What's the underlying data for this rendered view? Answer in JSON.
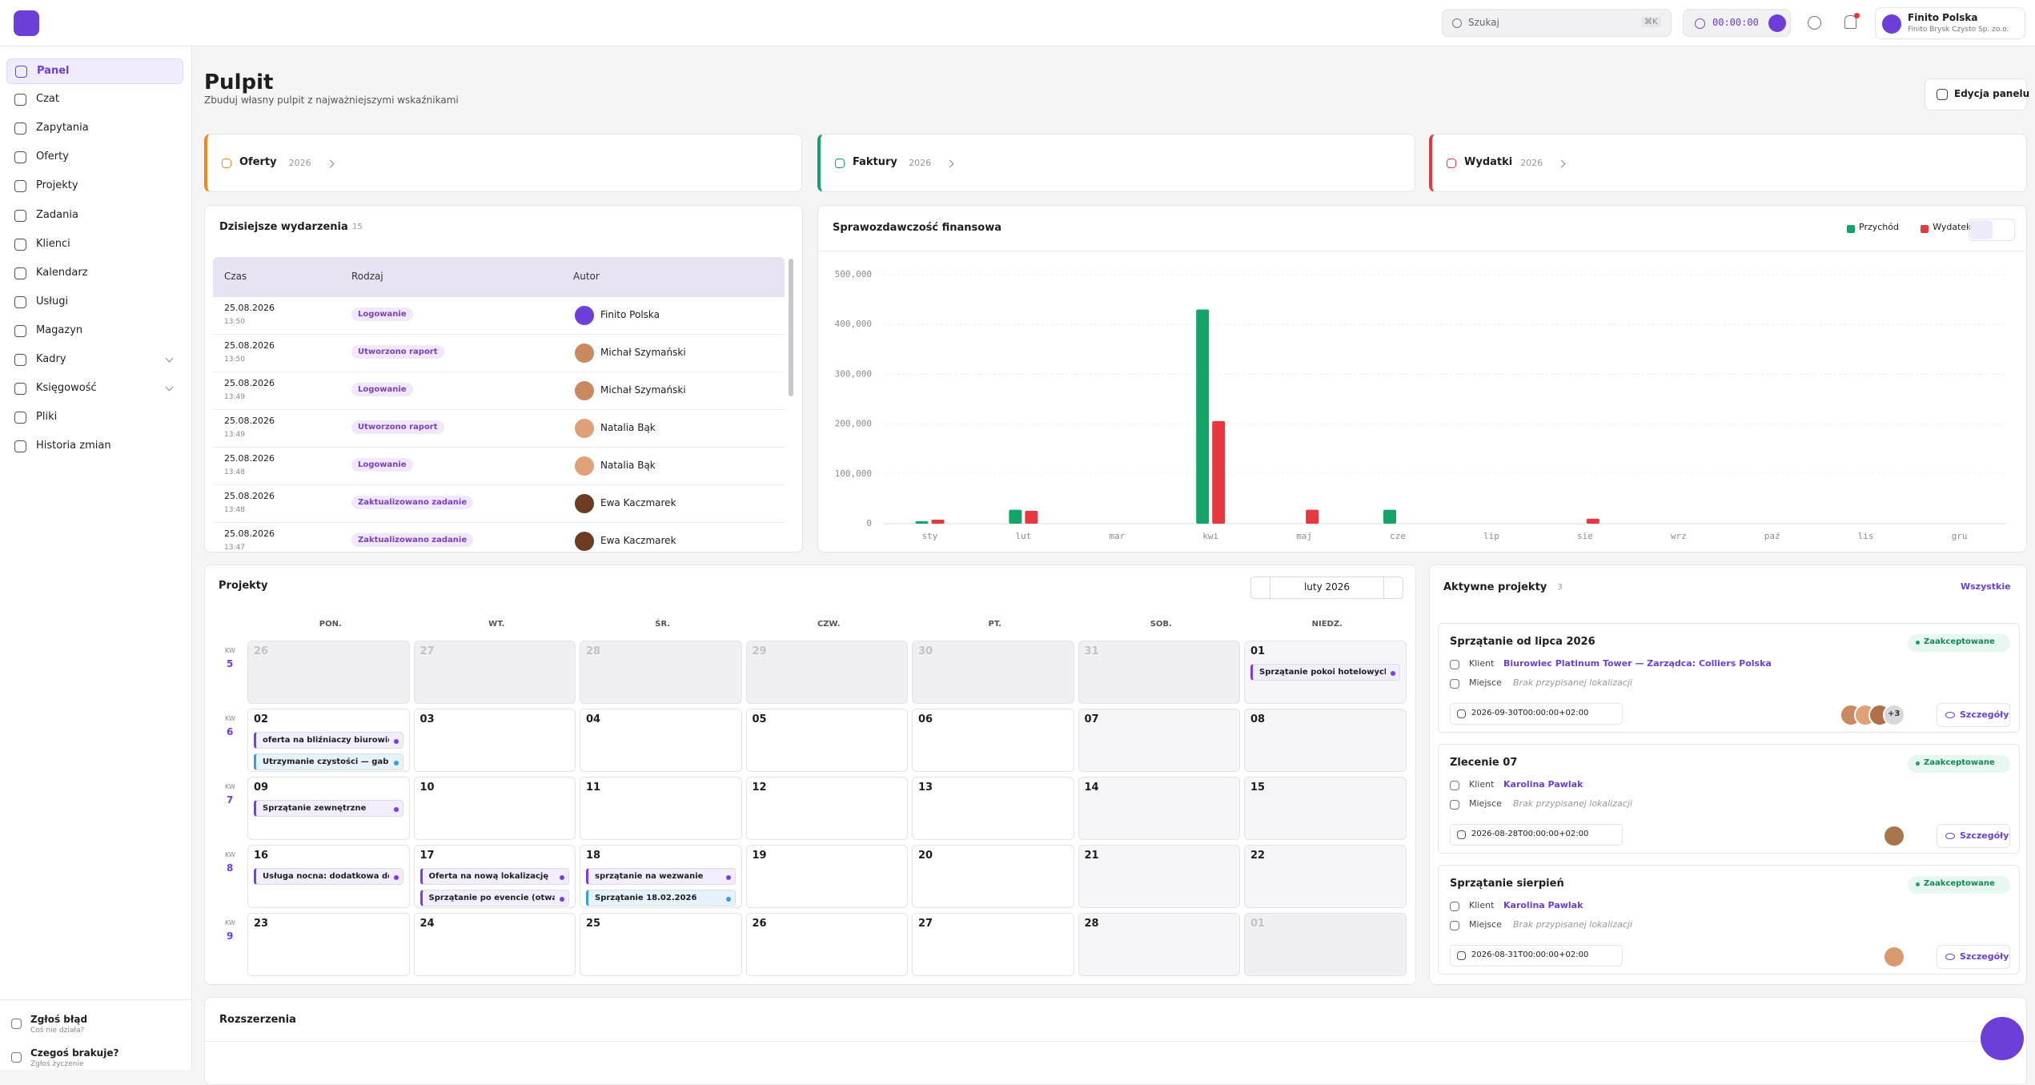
{
  "header": {
    "search_placeholder": "Szukaj",
    "search_shortcut": "⌘K",
    "timer": "00:00:00",
    "user_name": "Finito Polska",
    "user_company": "Finito Brysk Czysto Sp. zo.o."
  },
  "sidebar": {
    "items": [
      {
        "label": "Panel",
        "active": true
      },
      {
        "label": "Czat"
      },
      {
        "label": "Zapytania"
      },
      {
        "label": "Oferty"
      },
      {
        "label": "Projekty"
      },
      {
        "label": "Zadania"
      },
      {
        "label": "Klienci"
      },
      {
        "label": "Kalendarz"
      },
      {
        "label": "Usługi"
      },
      {
        "label": "Magazyn"
      },
      {
        "label": "Kadry",
        "expandable": true
      },
      {
        "label": "Księgowość",
        "expandable": true
      },
      {
        "label": "Pliki"
      },
      {
        "label": "Historia zmian"
      }
    ],
    "footer": [
      {
        "title": "Zgłoś błąd",
        "subtitle": "Coś nie działa?"
      },
      {
        "title": "Czegoś brakuje?",
        "subtitle": "Zgłoś życzenie"
      }
    ]
  },
  "page": {
    "title": "Pulpit",
    "subtitle": "Zbuduj własny pulpit z najważniejszymi wskaźnikami",
    "edit_button": "Edycja panelu"
  },
  "summary_cards": [
    {
      "label": "Oferty",
      "year": "2026",
      "color": "#f08a1c"
    },
    {
      "label": "Faktury",
      "year": "2026",
      "color": "#16a36a"
    },
    {
      "label": "Wydatki",
      "year": "2026",
      "color": "#e5393f"
    }
  ],
  "todays_events": {
    "title": "Dzisiejsze wydarzenia",
    "count": 15,
    "columns": [
      "Czas",
      "Rodzaj",
      "Autor"
    ],
    "rows": [
      {
        "date": "25.08.2026",
        "time": "13:50",
        "type": "Logowanie",
        "author": "Finito Polska"
      },
      {
        "date": "25.08.2026",
        "time": "13:50",
        "type": "Utworzono raport",
        "author": "Michał Szymański"
      },
      {
        "date": "25.08.2026",
        "time": "13:49",
        "type": "Logowanie",
        "author": "Michał Szymański"
      },
      {
        "date": "25.08.2026",
        "time": "13:49",
        "type": "Utworzono raport",
        "author": "Natalia Bąk"
      },
      {
        "date": "25.08.2026",
        "time": "13:48",
        "type": "Logowanie",
        "author": "Natalia Bąk"
      },
      {
        "date": "25.08.2026",
        "time": "13:48",
        "type": "Zaktualizowano zadanie",
        "author": "Ewa Kaczmarek"
      },
      {
        "date": "25.08.2026",
        "time": "13:47",
        "type": "Zaktualizowano zadanie",
        "author": "Ewa Kaczmarek"
      }
    ]
  },
  "chart_data": {
    "type": "bar",
    "title": "Sprawozdawczość finansowa",
    "categories": [
      "sty",
      "lut",
      "mar",
      "kwi",
      "maj",
      "cze",
      "lip",
      "sie",
      "wrz",
      "paź",
      "lis",
      "gru"
    ],
    "series": [
      {
        "name": "Przychód",
        "color": "#16a36a",
        "values": [
          5000,
          28000,
          0,
          430000,
          0,
          28000,
          0,
          0,
          0,
          0,
          0,
          0
        ]
      },
      {
        "name": "Wydatek",
        "color": "#e5393f",
        "values": [
          8000,
          26000,
          0,
          206000,
          28000,
          0,
          0,
          10000,
          0,
          0,
          0,
          0
        ]
      }
    ],
    "ylim": [
      0,
      500000
    ],
    "yticks": [
      0,
      {
        "value": 100000,
        "label": "100,000"
      },
      {
        "value": 200000,
        "label": "200,000"
      },
      {
        "value": 300000,
        "label": "300,000"
      },
      {
        "value": 400000,
        "label": "400,000"
      },
      {
        "value": 500000,
        "label": "500,000"
      }
    ],
    "grid": true,
    "legend": "top-right"
  },
  "calendar": {
    "title": "Projekty",
    "month": "luty 2026",
    "week_label": "KW",
    "weekdays": [
      "PON.",
      "WT.",
      "ŚR.",
      "CZW.",
      "PT.",
      "SOB.",
      "NIEDZ."
    ],
    "weeks": [
      {
        "number": 5,
        "days": [
          {
            "day": "26",
            "outside": true
          },
          {
            "day": "27",
            "outside": true
          },
          {
            "day": "28",
            "outside": true
          },
          {
            "day": "29",
            "outside": true
          },
          {
            "day": "30",
            "outside": true
          },
          {
            "day": "31",
            "outside": true
          },
          {
            "day": "01",
            "weekend": true,
            "events": [
              {
                "text": "Sprzątanie pokoi hotelowych + s...",
                "color": "#7c3aed"
              }
            ]
          }
        ]
      },
      {
        "number": 6,
        "days": [
          {
            "day": "02",
            "events": [
              {
                "text": "oferta na bliźniaczy biurowiec",
                "color": "#7c3aed"
              },
              {
                "text": "Utrzymanie czystości — gabinet...",
                "color": "#3b9ae8"
              }
            ]
          },
          {
            "day": "03"
          },
          {
            "day": "04"
          },
          {
            "day": "05"
          },
          {
            "day": "06"
          },
          {
            "day": "07",
            "weekend": true
          },
          {
            "day": "08",
            "weekend": true
          }
        ]
      },
      {
        "number": 7,
        "days": [
          {
            "day": "09",
            "events": [
              {
                "text": "Sprzątanie zewnętrzne",
                "color": "#7c3aed"
              }
            ]
          },
          {
            "day": "10"
          },
          {
            "day": "11"
          },
          {
            "day": "12"
          },
          {
            "day": "13"
          },
          {
            "day": "14",
            "weekend": true
          },
          {
            "day": "15",
            "weekend": true
          }
        ]
      },
      {
        "number": 8,
        "days": [
          {
            "day": "16",
            "events": [
              {
                "text": "Usługa nocna: dodatkowa dezyn...",
                "color": "#7c3aed"
              }
            ]
          },
          {
            "day": "17",
            "events": [
              {
                "text": "Oferta na nową lokalizację",
                "color": "#7c3aed"
              },
              {
                "text": "Sprzątanie po evencie (otwarcie ...",
                "color": "#7c3aed"
              }
            ]
          },
          {
            "day": "18",
            "events": [
              {
                "text": "sprzątanie na wezwanie",
                "color": "#7c3aed"
              },
              {
                "text": "Sprzątanie 18.02.2026",
                "color": "#3b9ae8"
              }
            ]
          },
          {
            "day": "19"
          },
          {
            "day": "20"
          },
          {
            "day": "21",
            "weekend": true
          },
          {
            "day": "22",
            "weekend": true
          }
        ]
      },
      {
        "number": 9,
        "days": [
          {
            "day": "23"
          },
          {
            "day": "24"
          },
          {
            "day": "25"
          },
          {
            "day": "26"
          },
          {
            "day": "27"
          },
          {
            "day": "28",
            "weekend": true
          },
          {
            "day": "01",
            "outside": true
          }
        ]
      }
    ]
  },
  "active_projects": {
    "title": "Aktywne projekty",
    "count": 3,
    "link": "Wszystkie",
    "labels": {
      "client": "Klient",
      "place": "Miejsce",
      "details": "Szczegóły"
    },
    "items": [
      {
        "name": "Sprzątanie od lipca 2026",
        "status": "Zaakceptowane",
        "client": "Biurowiec Platinum Tower — Zarządca: Colliers Polska",
        "place": "Brak przypisanej lokalizacji",
        "date": "2026-09-30T00:00:00+02:00",
        "extra_members": "+3"
      },
      {
        "name": "Zlecenie 07",
        "status": "Zaakceptowane",
        "client": "Karolina Pawlak",
        "place": "Brak przypisanej lokalizacji",
        "date": "2026-08-28T00:00:00+02:00"
      },
      {
        "name": "Sprzątanie sierpień",
        "status": "Zaakceptowane",
        "client": "Karolina Pawlak",
        "place": "Brak przypisanej lokalizacji",
        "date": "2026-08-31T00:00:00+02:00"
      }
    ]
  },
  "extensions": {
    "title": "Rozszerzenia"
  }
}
